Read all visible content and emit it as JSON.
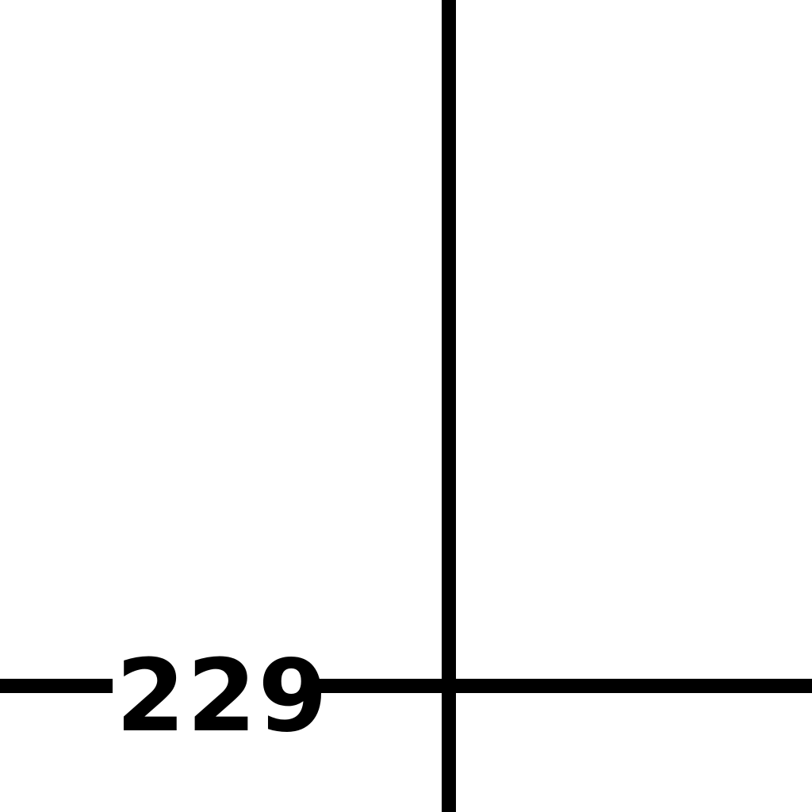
{
  "diagram": {
    "label": "229"
  }
}
